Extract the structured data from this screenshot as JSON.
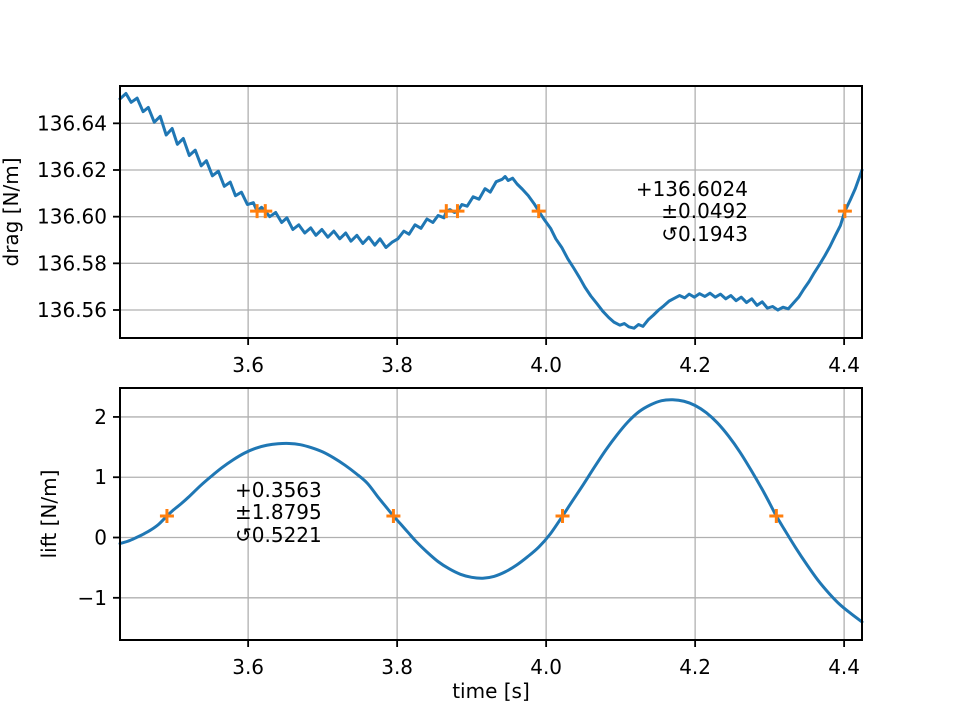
{
  "figure": {
    "background": "#ffffff"
  },
  "colors": {
    "line": "#1f77b4",
    "marker": "#ff7f0e",
    "grid": "#b0b0b0",
    "spine": "#000000"
  },
  "chart_data": [
    {
      "type": "line",
      "title": "",
      "xlabel": "",
      "ylabel": "drag [N/m]",
      "xlim": [
        3.428,
        4.424
      ],
      "ylim": [
        136.548,
        136.656
      ],
      "xticks": [
        3.6,
        3.8,
        4.0,
        4.2,
        4.4
      ],
      "xtick_labels": [
        "3.6",
        "3.8",
        "4.0",
        "4.2",
        "4.4"
      ],
      "yticks": [
        136.56,
        136.58,
        136.6,
        136.62,
        136.64
      ],
      "ytick_labels": [
        "136.56",
        "136.58",
        "136.60",
        "136.62",
        "136.64"
      ],
      "grid": true,
      "series": [
        {
          "name": "drag",
          "color": "#1f77b4",
          "smooth": false,
          "x": [
            3.428,
            3.436,
            3.443,
            3.451,
            3.459,
            3.466,
            3.474,
            3.482,
            3.49,
            3.498,
            3.505,
            3.513,
            3.521,
            3.529,
            3.537,
            3.544,
            3.552,
            3.56,
            3.568,
            3.576,
            3.583,
            3.591,
            3.599,
            3.607,
            3.612,
            3.618,
            3.623,
            3.629,
            3.637,
            3.645,
            3.652,
            3.66,
            3.668,
            3.676,
            3.684,
            3.691,
            3.699,
            3.707,
            3.715,
            3.723,
            3.731,
            3.738,
            3.746,
            3.754,
            3.762,
            3.77,
            3.777,
            3.785,
            3.793,
            3.801,
            3.809,
            3.816,
            3.824,
            3.832,
            3.84,
            3.848,
            3.855,
            3.863,
            3.866,
            3.871,
            3.877,
            3.881,
            3.887,
            3.894,
            3.902,
            3.91,
            3.918,
            3.925,
            3.933,
            3.941,
            3.945,
            3.949,
            3.955,
            3.961,
            3.968,
            3.976,
            3.984,
            3.99,
            3.998,
            4.006,
            4.013,
            4.021,
            4.029,
            4.037,
            4.045,
            4.052,
            4.06,
            4.068,
            4.076,
            4.084,
            4.091,
            4.099,
            4.105,
            4.111,
            4.118,
            4.124,
            4.13,
            4.137,
            4.144,
            4.151,
            4.158,
            4.165,
            4.172,
            4.179,
            4.186,
            4.192,
            4.199,
            4.206,
            4.213,
            4.22,
            4.227,
            4.234,
            4.241,
            4.248,
            4.255,
            4.262,
            4.269,
            4.276,
            4.283,
            4.29,
            4.297,
            4.304,
            4.311,
            4.318,
            4.325,
            4.332,
            4.339,
            4.346,
            4.353,
            4.36,
            4.367,
            4.374,
            4.381,
            4.388,
            4.395,
            4.401,
            4.408,
            4.415,
            4.424
          ],
          "y": [
            136.6505,
            136.6528,
            136.649,
            136.6508,
            136.645,
            136.6468,
            136.6405,
            136.643,
            136.635,
            136.6378,
            136.631,
            136.6335,
            136.6262,
            136.6285,
            136.6218,
            136.624,
            136.6175,
            136.6195,
            136.613,
            136.6148,
            136.609,
            136.6105,
            136.6052,
            136.606,
            136.6024,
            136.604,
            136.6024,
            136.6,
            136.6018,
            136.5975,
            136.5995,
            136.5945,
            136.5965,
            136.593,
            136.5952,
            136.592,
            136.5945,
            136.5912,
            136.5938,
            136.5905,
            136.593,
            136.5895,
            136.592,
            136.5885,
            136.5912,
            136.5878,
            136.5905,
            136.5868,
            136.589,
            136.5905,
            136.5938,
            136.5925,
            136.5965,
            136.595,
            136.599,
            136.5975,
            136.6005,
            136.5995,
            136.6024,
            136.603,
            136.6018,
            136.6024,
            136.6052,
            136.6045,
            136.6085,
            136.6075,
            136.612,
            136.6105,
            136.615,
            136.616,
            136.6172,
            136.6155,
            136.6165,
            136.614,
            136.6118,
            136.609,
            136.6055,
            136.6024,
            136.5985,
            136.595,
            136.5905,
            136.5868,
            136.582,
            136.578,
            136.5738,
            136.5698,
            136.566,
            136.5628,
            136.5595,
            136.5568,
            136.5548,
            136.5535,
            136.5542,
            136.5528,
            136.5522,
            136.5538,
            136.553,
            136.5558,
            136.5578,
            136.56,
            136.5618,
            136.5638,
            136.565,
            136.5662,
            136.5652,
            136.5668,
            136.5655,
            136.567,
            136.5658,
            136.5672,
            136.5655,
            136.5668,
            136.5648,
            136.5662,
            136.564,
            136.5655,
            136.5632,
            136.5648,
            136.562,
            136.5635,
            136.5608,
            136.5615,
            136.56,
            136.5612,
            136.5605,
            136.563,
            136.5655,
            136.569,
            136.5722,
            136.576,
            136.5795,
            136.5832,
            136.5872,
            136.5918,
            136.5962,
            136.6024,
            136.607,
            136.612,
            136.62
          ]
        }
      ],
      "markers": {
        "symbol": "plus",
        "color": "#ff7f0e",
        "value": 136.6024,
        "x": [
          3.612,
          3.623,
          3.866,
          3.881,
          3.99,
          4.401
        ],
        "y": [
          136.6024,
          136.6024,
          136.6024,
          136.6024,
          136.6024,
          136.6024
        ]
      },
      "annotation": {
        "align": "right",
        "lines": [
          "+136.6024",
          "±0.0492",
          "↺0.1943"
        ]
      }
    },
    {
      "type": "line",
      "title": "",
      "xlabel": "time [s]",
      "ylabel": "lift [N/m]",
      "xlim": [
        3.428,
        4.424
      ],
      "ylim": [
        -1.7,
        2.48
      ],
      "xticks": [
        3.6,
        3.8,
        4.0,
        4.2,
        4.4
      ],
      "xtick_labels": [
        "3.6",
        "3.8",
        "4.0",
        "4.2",
        "4.4"
      ],
      "yticks": [
        -1,
        0,
        1,
        2
      ],
      "ytick_labels": [
        "−1",
        "0",
        "1",
        "2"
      ],
      "grid": true,
      "series": [
        {
          "name": "lift",
          "color": "#1f77b4",
          "smooth": true,
          "x": [
            3.428,
            3.44,
            3.45,
            3.46,
            3.47,
            3.48,
            3.491,
            3.5,
            3.51,
            3.52,
            3.536,
            3.55,
            3.565,
            3.58,
            3.595,
            3.61,
            3.625,
            3.64,
            3.655,
            3.67,
            3.685,
            3.7,
            3.715,
            3.73,
            3.745,
            3.76,
            3.775,
            3.785,
            3.795,
            3.805,
            3.815,
            3.825,
            3.84,
            3.855,
            3.87,
            3.885,
            3.9,
            3.915,
            3.93,
            3.945,
            3.96,
            3.975,
            3.99,
            4.005,
            4.022,
            4.035,
            4.05,
            4.065,
            4.08,
            4.095,
            4.11,
            4.125,
            4.14,
            4.155,
            4.17,
            4.185,
            4.2,
            4.215,
            4.23,
            4.245,
            4.26,
            4.275,
            4.29,
            4.3,
            4.309,
            4.32,
            4.335,
            4.35,
            4.365,
            4.38,
            4.395,
            4.41,
            4.424
          ],
          "y": [
            -0.1,
            -0.055,
            0.0,
            0.06,
            0.13,
            0.22,
            0.3563,
            0.46,
            0.56,
            0.67,
            0.86,
            1.01,
            1.16,
            1.29,
            1.4,
            1.48,
            1.53,
            1.555,
            1.56,
            1.54,
            1.49,
            1.42,
            1.32,
            1.2,
            1.06,
            0.9,
            0.66,
            0.51,
            0.3563,
            0.22,
            0.08,
            -0.06,
            -0.24,
            -0.4,
            -0.52,
            -0.61,
            -0.66,
            -0.675,
            -0.645,
            -0.57,
            -0.46,
            -0.32,
            -0.16,
            0.05,
            0.3563,
            0.6,
            0.88,
            1.17,
            1.45,
            1.7,
            1.92,
            2.09,
            2.2,
            2.27,
            2.285,
            2.26,
            2.19,
            2.07,
            1.9,
            1.68,
            1.42,
            1.12,
            0.8,
            0.57,
            0.3563,
            0.13,
            -0.17,
            -0.45,
            -0.71,
            -0.93,
            -1.12,
            -1.27,
            -1.4
          ]
        }
      ],
      "markers": {
        "symbol": "plus",
        "color": "#ff7f0e",
        "value": 0.3563,
        "x": [
          3.491,
          3.795,
          4.022,
          4.309
        ],
        "y": [
          0.3563,
          0.3563,
          0.3563,
          0.3563
        ]
      },
      "annotation": {
        "align": "left",
        "lines": [
          "+0.3563",
          "±1.8795",
          "↺0.5221"
        ]
      }
    }
  ]
}
